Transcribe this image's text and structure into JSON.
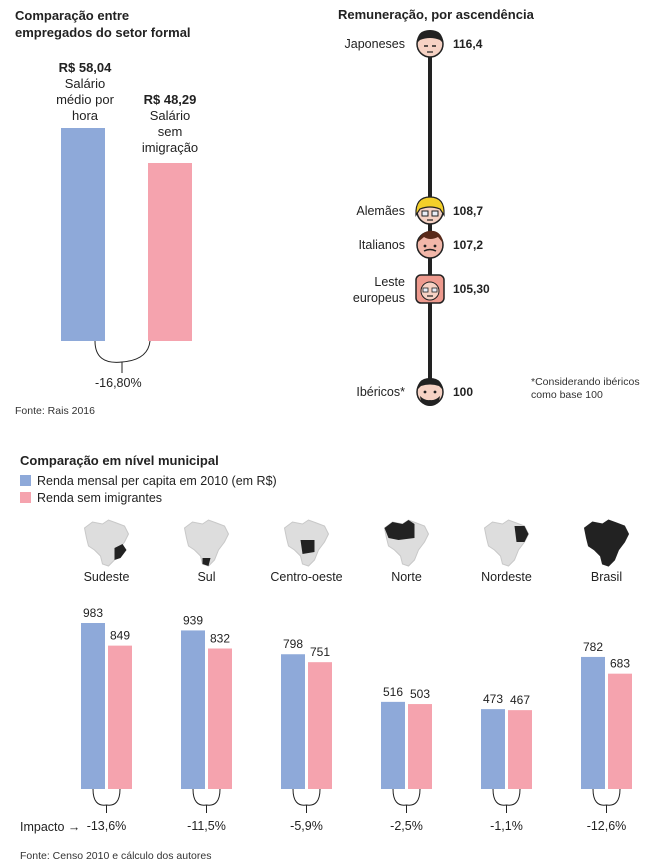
{
  "colors": {
    "blue": "#8EA9D9",
    "pink": "#F5A3AE",
    "line": "#222222",
    "map_gray": "#dddddd",
    "map_dark": "#222222"
  },
  "panel1": {
    "title_line1": "Comparação entre",
    "title_line2": "empregados do setor formal",
    "bar1": {
      "value_label": "R$ 58,04",
      "desc1": "Salário",
      "desc2": "médio por",
      "desc3": "hora"
    },
    "bar2": {
      "value_label": "R$ 48,29",
      "desc1": "Salário",
      "desc2": "sem",
      "desc3": "imigração"
    },
    "diff": "-16,80%",
    "source": "Fonte: Rais 2016"
  },
  "panel2": {
    "title": "Remuneração, por ascendência",
    "note_line1": "*Considerando ibéricos",
    "note_line2": "como base 100",
    "items": [
      {
        "name1": "Japoneses",
        "name2": "",
        "value": "116,4",
        "icon": "japanese-face-icon"
      },
      {
        "name1": "Alemães",
        "name2": "",
        "value": "108,7",
        "icon": "german-face-icon"
      },
      {
        "name1": "Italianos",
        "name2": "",
        "value": "107,2",
        "icon": "italian-face-icon"
      },
      {
        "name1": "Leste",
        "name2": "europeus",
        "value": "105,30",
        "icon": "eastern-european-face-icon"
      },
      {
        "name1": "Ibéricos*",
        "name2": "",
        "value": "100",
        "icon": "iberian-face-icon"
      }
    ]
  },
  "panel3": {
    "title": "Comparação em nível municipal",
    "legend": [
      {
        "label": "Renda mensal per capita em 2010 (em R$)",
        "color": "#8EA9D9"
      },
      {
        "label": "Renda sem imigrantes",
        "color": "#F5A3AE"
      }
    ],
    "impact_label": "Impacto →",
    "source": "Fonte: Censo 2010 e cálculo dos autores"
  },
  "chart_data": [
    {
      "type": "bar",
      "title": "Comparação entre empregados do setor formal",
      "categories": [
        "Salário médio por hora",
        "Salário sem imigração"
      ],
      "values": [
        58.04,
        48.29
      ],
      "value_labels": [
        "R$ 58,04",
        "R$ 48,29"
      ],
      "annotation": "-16,80%"
    },
    {
      "type": "scatter",
      "title": "Remuneração, por ascendência",
      "categories": [
        "Japoneses",
        "Alemães",
        "Italianos",
        "Leste europeus",
        "Ibéricos*"
      ],
      "values": [
        116.4,
        108.7,
        107.2,
        105.3,
        100
      ],
      "ylim": [
        100,
        116.4
      ]
    },
    {
      "type": "bar",
      "title": "Comparação em nível municipal",
      "categories": [
        "Sudeste",
        "Sul",
        "Centro-oeste",
        "Norte",
        "Nordeste",
        "Brasil"
      ],
      "series": [
        {
          "name": "Renda mensal per capita em 2010 (em R$)",
          "values": [
            983,
            939,
            798,
            516,
            473,
            782
          ]
        },
        {
          "name": "Renda sem imigrantes",
          "values": [
            849,
            832,
            751,
            503,
            467,
            683
          ]
        }
      ],
      "impact": [
        "-13,6%",
        "-11,5%",
        "-5,9%",
        "-2,5%",
        "-1,1%",
        "-12,6%"
      ]
    }
  ]
}
